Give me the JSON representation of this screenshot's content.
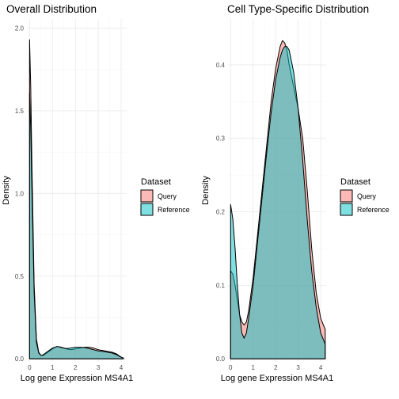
{
  "colors": {
    "query": "#F8766D",
    "reference": "#00BFC4",
    "outline": "#000000"
  },
  "chart_data": [
    {
      "type": "area",
      "title": "Overall Distribution",
      "xlabel": "Log gene Expression MS4A1",
      "ylabel": "Density",
      "xlim": [
        0,
        4.2
      ],
      "ylim": [
        0,
        2.0
      ],
      "xticks": [
        0,
        1,
        2,
        3,
        4
      ],
      "yticks": [
        0.0,
        0.5,
        1.0,
        1.5,
        2.0
      ],
      "ytick_labels": [
        "0.0",
        "0.5",
        "1.0",
        "1.5",
        "2.0"
      ],
      "grid": true,
      "legend": {
        "title": "Dataset",
        "position": "right"
      },
      "series": [
        {
          "name": "Query",
          "x": [
            0,
            0.05,
            0.1,
            0.2,
            0.3,
            0.4,
            0.5,
            0.6,
            0.7,
            0.8,
            1.0,
            1.2,
            1.4,
            1.6,
            1.8,
            2.0,
            2.2,
            2.4,
            2.6,
            2.8,
            3.0,
            3.2,
            3.4,
            3.6,
            3.8,
            4.0,
            4.1
          ],
          "y": [
            1.93,
            1.65,
            1.2,
            0.45,
            0.12,
            0.04,
            0.02,
            0.02,
            0.03,
            0.04,
            0.06,
            0.075,
            0.07,
            0.06,
            0.055,
            0.06,
            0.065,
            0.07,
            0.07,
            0.065,
            0.055,
            0.05,
            0.045,
            0.04,
            0.03,
            0.01,
            0.005
          ]
        },
        {
          "name": "Reference",
          "x": [
            0,
            0.05,
            0.1,
            0.2,
            0.3,
            0.4,
            0.5,
            0.6,
            0.7,
            0.8,
            1.0,
            1.2,
            1.4,
            1.6,
            1.8,
            2.0,
            2.2,
            2.4,
            2.6,
            2.8,
            3.0,
            3.2,
            3.4,
            3.6,
            3.8,
            4.0,
            4.1
          ],
          "y": [
            1.61,
            1.4,
            1.05,
            0.4,
            0.1,
            0.035,
            0.02,
            0.025,
            0.035,
            0.045,
            0.065,
            0.075,
            0.068,
            0.062,
            0.065,
            0.07,
            0.07,
            0.068,
            0.062,
            0.055,
            0.048,
            0.045,
            0.04,
            0.035,
            0.025,
            0.01,
            0.005
          ]
        }
      ]
    },
    {
      "type": "area",
      "title": "Cell Type-Specific Distribution",
      "xlabel": "Log gene Expression MS4A1",
      "ylabel": "Density",
      "xlim": [
        0,
        4.2
      ],
      "ylim": [
        0,
        0.45
      ],
      "xticks": [
        0,
        1,
        2,
        3,
        4
      ],
      "yticks": [
        0.0,
        0.1,
        0.2,
        0.3,
        0.4
      ],
      "ytick_labels": [
        "0.0",
        "0.1",
        "0.2",
        "0.3",
        "0.4"
      ],
      "grid": true,
      "legend": {
        "title": "Dataset",
        "position": "right"
      },
      "series": [
        {
          "name": "Query",
          "x": [
            0,
            0.1,
            0.2,
            0.3,
            0.4,
            0.5,
            0.6,
            0.7,
            0.8,
            1.0,
            1.2,
            1.4,
            1.6,
            1.8,
            2.0,
            2.2,
            2.3,
            2.4,
            2.5,
            2.6,
            2.8,
            3.0,
            3.2,
            3.4,
            3.6,
            3.8,
            4.0,
            4.2
          ],
          "y": [
            0.12,
            0.115,
            0.1,
            0.08,
            0.06,
            0.05,
            0.046,
            0.05,
            0.065,
            0.11,
            0.17,
            0.23,
            0.29,
            0.35,
            0.395,
            0.425,
            0.433,
            0.43,
            0.42,
            0.4,
            0.37,
            0.34,
            0.3,
            0.23,
            0.15,
            0.09,
            0.055,
            0.04
          ]
        },
        {
          "name": "Reference",
          "x": [
            0,
            0.1,
            0.2,
            0.3,
            0.4,
            0.5,
            0.6,
            0.7,
            0.8,
            1.0,
            1.2,
            1.4,
            1.6,
            1.8,
            2.0,
            2.2,
            2.3,
            2.4,
            2.5,
            2.6,
            2.8,
            3.0,
            3.2,
            3.4,
            3.6,
            3.8,
            4.0,
            4.2
          ],
          "y": [
            0.21,
            0.19,
            0.15,
            0.1,
            0.06,
            0.035,
            0.028,
            0.035,
            0.055,
            0.1,
            0.16,
            0.22,
            0.28,
            0.335,
            0.38,
            0.41,
            0.42,
            0.425,
            0.425,
            0.42,
            0.39,
            0.34,
            0.27,
            0.19,
            0.12,
            0.07,
            0.035,
            0.02
          ]
        }
      ]
    }
  ]
}
